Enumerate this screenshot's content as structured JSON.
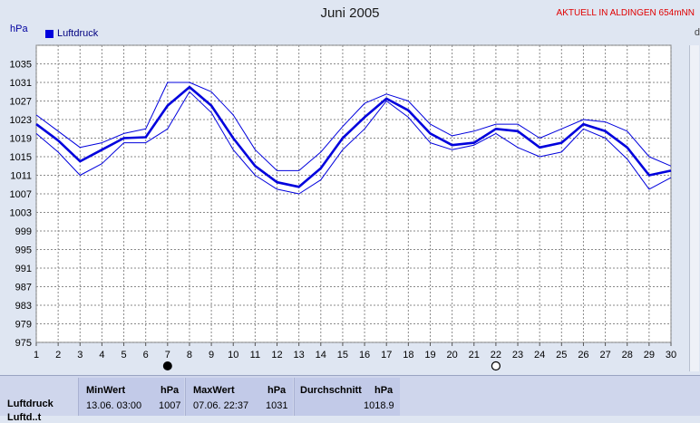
{
  "header": {
    "title": "Juni 2005",
    "station": "AKTUELL IN ALDINGEN 654mNN",
    "cutoff_char": "d",
    "unit": "hPa",
    "legend_label": "Luftdruck"
  },
  "colors": {
    "series": "#0000dd",
    "grid": "#8a8a8a",
    "plot_bg": "#ffffff",
    "station_text": "#e00000"
  },
  "chart_data": {
    "type": "line",
    "title": "Juni 2005",
    "ylabel": "hPa",
    "xlabel": "",
    "ylim": [
      975,
      1039
    ],
    "xlim": [
      1,
      30
    ],
    "grid": true,
    "legend_position": "top-left",
    "y_ticks": [
      975,
      979,
      983,
      987,
      991,
      995,
      999,
      1003,
      1007,
      1011,
      1015,
      1019,
      1023,
      1027,
      1031,
      1035
    ],
    "x_ticks": [
      1,
      2,
      3,
      4,
      5,
      6,
      7,
      8,
      9,
      10,
      11,
      12,
      13,
      14,
      15,
      16,
      17,
      18,
      19,
      20,
      21,
      22,
      23,
      24,
      25,
      26,
      27,
      28,
      29,
      30
    ],
    "x": [
      1,
      2,
      3,
      4,
      5,
      6,
      7,
      8,
      9,
      10,
      11,
      12,
      13,
      14,
      15,
      16,
      17,
      18,
      19,
      20,
      21,
      22,
      23,
      24,
      25,
      26,
      27,
      28,
      29,
      30
    ],
    "series": [
      {
        "name": "Luftdruck",
        "role": "mean",
        "values": [
          1022,
          1018.5,
          1014,
          1016.5,
          1019,
          1019.2,
          1026,
          1030,
          1026,
          1019,
          1013,
          1009.5,
          1008.5,
          1012.5,
          1019,
          1023.5,
          1027.5,
          1025,
          1020,
          1017.5,
          1018,
          1021,
          1020.5,
          1017,
          1018,
          1022,
          1020.5,
          1017,
          1011,
          1012
        ]
      },
      {
        "role": "max",
        "values": [
          1024,
          1020.5,
          1017,
          1018,
          1020,
          1021,
          1031,
          1031,
          1029,
          1024,
          1016.5,
          1012,
          1012,
          1016,
          1021.5,
          1026.5,
          1028.5,
          1027,
          1022,
          1019.5,
          1020.5,
          1022,
          1022,
          1019,
          1021,
          1023,
          1022.5,
          1020.5,
          1015,
          1013
        ]
      },
      {
        "role": "min",
        "values": [
          1020,
          1016,
          1011,
          1013.5,
          1018,
          1018,
          1021,
          1029,
          1024.5,
          1016.5,
          1011,
          1008,
          1007,
          1010,
          1016.5,
          1021,
          1027,
          1023.5,
          1018,
          1016.5,
          1017.5,
          1020,
          1017,
          1015,
          1016,
          1021,
          1019,
          1014.5,
          1008,
          1010.5
        ]
      }
    ],
    "markers": [
      {
        "x": 7,
        "type": "new-moon"
      },
      {
        "x": 22,
        "type": "full-moon"
      }
    ]
  },
  "stats": {
    "row_label": "Luftdruck",
    "row_label_2": "Luftd..t",
    "min_header": "MinWert",
    "min_unit": "hPa",
    "min_datetime": "13.06.  03:00",
    "min_value": "1007",
    "max_header": "MaxWert",
    "max_unit": "hPa",
    "max_datetime": "07.06.  22:37",
    "max_value": "1031",
    "avg_header": "Durchschnitt",
    "avg_unit": "hPa",
    "avg_value": "1018.9"
  }
}
